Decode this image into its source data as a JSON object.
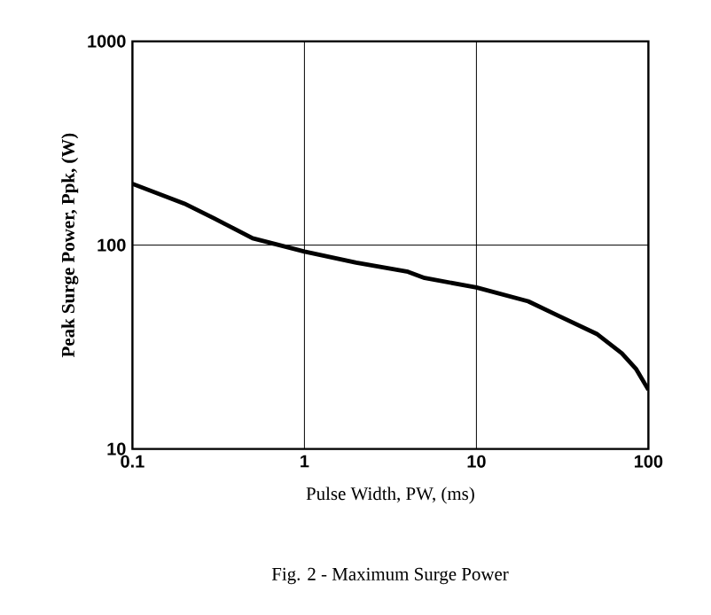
{
  "chart_data": {
    "type": "line",
    "xlabel": "Pulse Width, PW, (ms)",
    "ylabel": "Peak Surge Power, Ppk, (W)",
    "annotations": [
      "Fig. 2 - Maximum Surge Power"
    ],
    "log": "xy",
    "grid": true,
    "xlim": [
      0.1,
      100
    ],
    "ylim": [
      10,
      1000
    ],
    "xticks": [
      0.1,
      1,
      10,
      100
    ],
    "yticks": [
      10,
      100,
      1000
    ],
    "series": [
      {
        "color": "#000000",
        "x": [
          0.1,
          0.2,
          0.3,
          0.5,
          1,
          2,
          4,
          5,
          10,
          20,
          30,
          50,
          70,
          85,
          100
        ],
        "values": [
          200,
          160,
          135,
          108,
          93,
          82,
          74,
          69,
          62,
          53,
          45,
          36.7,
          29.5,
          24.6,
          19.5
        ]
      }
    ]
  }
}
